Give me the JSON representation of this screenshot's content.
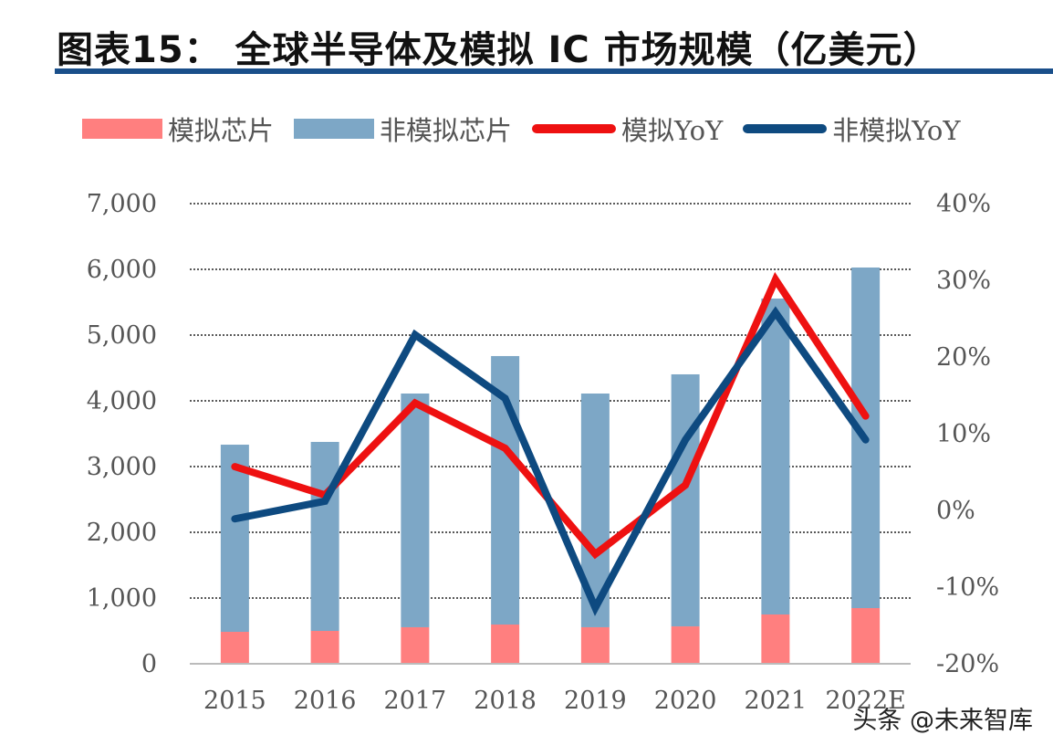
{
  "chart_data": {
    "type": "bar",
    "title": "图表15：  全球半导体及模拟 IC 市场规模（亿美元）",
    "categories": [
      "2015",
      "2016",
      "2017",
      "2018",
      "2019",
      "2020",
      "2021",
      "2022E"
    ],
    "series": [
      {
        "name": "模拟芯片",
        "kind": "bar",
        "axis": "left",
        "color": "#ff7f7f",
        "values": [
          486,
          500,
          556,
          597,
          556,
          569,
          750,
          847
        ]
      },
      {
        "name": "非模拟芯片",
        "kind": "bar",
        "axis": "left",
        "color": "#7da7c6",
        "values": [
          2847,
          2875,
          3555,
          4084,
          3555,
          3834,
          4806,
          5181
        ]
      },
      {
        "name": "模拟YoY",
        "kind": "line",
        "axis": "right",
        "color": "#ee1111",
        "values": [
          5.7,
          2.0,
          14.0,
          8.1,
          -5.7,
          3.3,
          30.1,
          12.3
        ]
      },
      {
        "name": "非模拟YoY",
        "kind": "line",
        "axis": "right",
        "color": "#0e4a80",
        "values": [
          -1.1,
          1.2,
          22.9,
          14.6,
          -12.7,
          9.2,
          25.8,
          9.2
        ]
      }
    ],
    "stacked": true,
    "y_left": {
      "lim": [
        0,
        7000
      ],
      "ticks": [
        "0",
        "1,000",
        "2,000",
        "3,000",
        "4,000",
        "5,000",
        "6,000",
        "7,000"
      ]
    },
    "y_right": {
      "lim": [
        -20,
        40
      ],
      "unit": "%",
      "ticks": [
        "-20%",
        "-10%",
        "0%",
        "10%",
        "20%",
        "30%",
        "40%"
      ]
    },
    "grid": true,
    "legend": "top"
  },
  "watermark": "头条 @未来智库"
}
